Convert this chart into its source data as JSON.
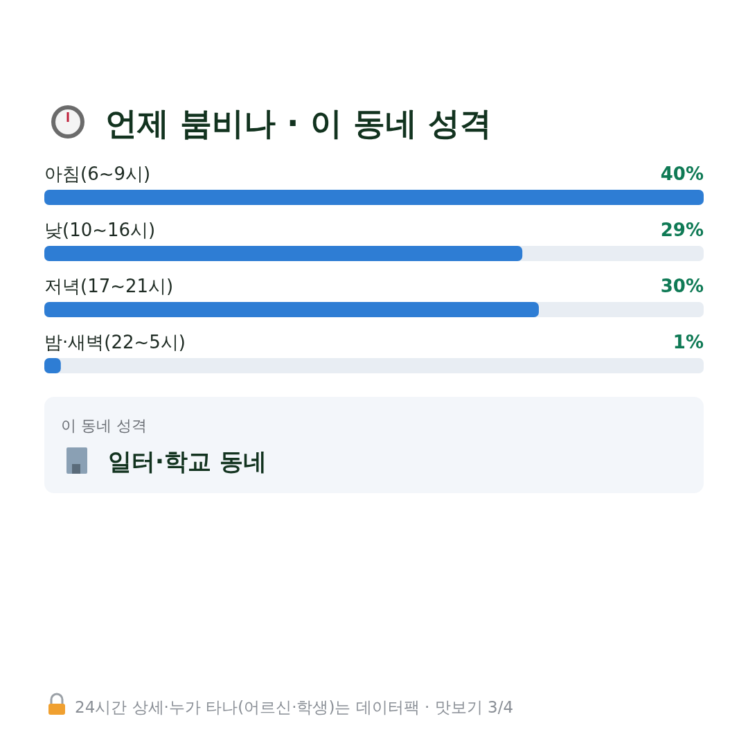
{
  "chart_data": {
    "type": "bar",
    "orientation": "horizontal",
    "title": "언제 붐비나 · 이 동네 성격",
    "categories": [
      "아침(6~9시)",
      "낮(10~16시)",
      "저녁(17~21시)",
      "밤·새벽(22~5시)"
    ],
    "values": [
      40,
      29,
      30,
      1
    ],
    "color": "#2e7dd4",
    "value_labels": [
      "40%",
      "29%",
      "30%",
      "1%"
    ],
    "annotations": [
      "이 동네 성격",
      "일터·학교 동네",
      "24시간 상세·누가 타나(어르신·학생)는 데이터팩 · 맛보기 3/4"
    ]
  }
}
